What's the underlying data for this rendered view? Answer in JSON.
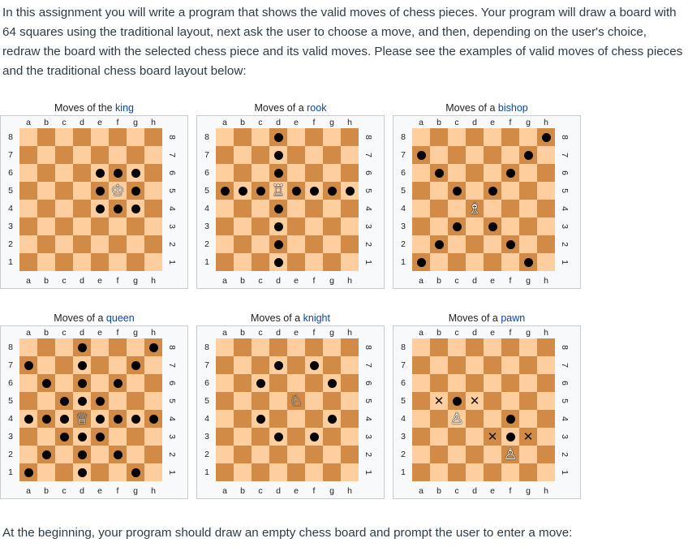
{
  "intro_text": "In this assignment you will write a program that shows the valid moves of chess pieces. Your program will draw a board with 64 squares using the traditional layout, next ask the user to choose a move, and then, depending on the user's choice, redraw the board with the selected chess piece and its valid moves. Please see the examples of valid moves of chess pieces and the traditional chess board layout below:",
  "outro_text": "At the beginning, your program should draw an empty chess board and prompt the user to enter a move:",
  "files": [
    "a",
    "b",
    "c",
    "d",
    "e",
    "f",
    "g",
    "h"
  ],
  "ranks": [
    "8",
    "7",
    "6",
    "5",
    "4",
    "3",
    "2",
    "1"
  ],
  "colors": {
    "light_square": "#ffce9e",
    "dark_square": "#d18b47",
    "link": "#0645ad"
  },
  "diagrams": [
    {
      "id": "king",
      "caption_prefix": "Moves of the ",
      "caption_link": "king",
      "piece": {
        "square": "f5",
        "glyph": "♔",
        "icon": "king-icon"
      },
      "dots": [
        "e6",
        "f6",
        "g6",
        "e5",
        "g5",
        "e4",
        "f4",
        "g4"
      ],
      "crosses": []
    },
    {
      "id": "rook",
      "caption_prefix": "Moves of a ",
      "caption_link": "rook",
      "piece": {
        "square": "d5",
        "glyph": "♖",
        "icon": "rook-icon"
      },
      "dots": [
        "d8",
        "d7",
        "d6",
        "d4",
        "d3",
        "d2",
        "d1",
        "a5",
        "b5",
        "c5",
        "e5",
        "f5",
        "g5",
        "h5"
      ],
      "crosses": []
    },
    {
      "id": "bishop",
      "caption_prefix": "Moves of a ",
      "caption_link": "bishop",
      "piece": {
        "square": "d4",
        "glyph": "♗",
        "icon": "bishop-icon"
      },
      "dots": [
        "h8",
        "a7",
        "g7",
        "b6",
        "f6",
        "c5",
        "e5",
        "c3",
        "e3",
        "b2",
        "f2",
        "a1",
        "g1"
      ],
      "crosses": []
    },
    {
      "id": "queen",
      "caption_prefix": "Moves of a ",
      "caption_link": "queen",
      "piece": {
        "square": "d4",
        "glyph": "♕",
        "icon": "queen-icon"
      },
      "dots": [
        "d8",
        "h8",
        "a7",
        "d7",
        "g7",
        "b6",
        "d6",
        "f6",
        "c5",
        "d5",
        "e5",
        "a4",
        "b4",
        "c4",
        "e4",
        "f4",
        "g4",
        "h4",
        "c3",
        "d3",
        "e3",
        "b2",
        "d2",
        "f2",
        "a1",
        "d1",
        "g1"
      ],
      "crosses": []
    },
    {
      "id": "knight",
      "caption_prefix": "Moves of a ",
      "caption_link": "knight",
      "piece": {
        "square": "e5",
        "glyph": "♘",
        "icon": "knight-icon"
      },
      "dots": [
        "d7",
        "f7",
        "c6",
        "g6",
        "c4",
        "g4",
        "d3",
        "f3"
      ],
      "crosses": []
    },
    {
      "id": "pawn",
      "caption_prefix": "Moves of a ",
      "caption_link": "pawn",
      "pieces": [
        {
          "square": "c4",
          "glyph": "♙",
          "icon": "pawn-icon"
        },
        {
          "square": "f2",
          "glyph": "♙",
          "icon": "pawn-icon"
        }
      ],
      "dots": [
        "c5",
        "f4",
        "f3"
      ],
      "crosses": [
        "b5",
        "d5",
        "e3",
        "g3"
      ]
    }
  ]
}
